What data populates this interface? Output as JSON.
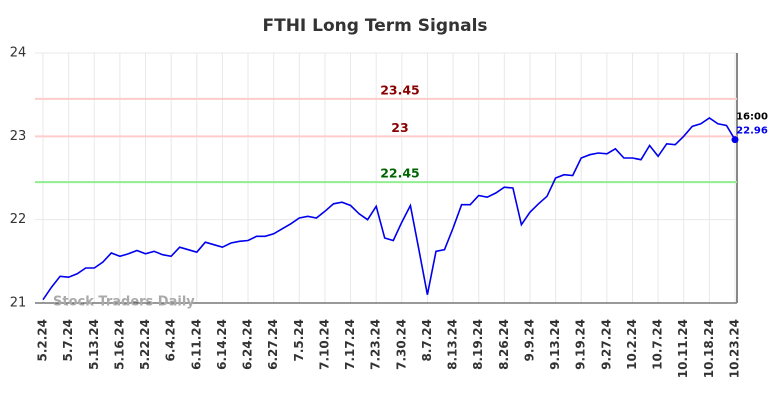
{
  "chart_data": {
    "type": "line",
    "title": "FTHI Long Term Signals",
    "watermark": "Stock Traders Daily",
    "categories": [
      "5.2.24",
      null,
      null,
      "5.7.24",
      null,
      null,
      "5.13.24",
      null,
      null,
      "5.16.24",
      null,
      null,
      "5.22.24",
      null,
      null,
      "6.4.24",
      null,
      null,
      "6.11.24",
      null,
      null,
      "6.14.24",
      null,
      null,
      "6.24.24",
      null,
      null,
      "6.27.24",
      null,
      null,
      "7.5.24",
      null,
      null,
      "7.10.24",
      null,
      null,
      "7.17.24",
      null,
      null,
      "7.23.24",
      null,
      null,
      "7.30.24",
      null,
      null,
      "8.7.24",
      null,
      null,
      "8.13.24",
      null,
      null,
      "8.19.24",
      null,
      null,
      "8.26.24",
      null,
      null,
      "9.9.24",
      null,
      null,
      "9.13.24",
      null,
      null,
      "9.19.24",
      null,
      null,
      "9.27.24",
      null,
      null,
      "10.2.24",
      null,
      null,
      "10.7.24",
      null,
      null,
      "10.11.24",
      null,
      null,
      "10.18.24",
      null,
      null,
      "10.23.24"
    ],
    "series": [
      {
        "color": "#0000ee",
        "values": [
          21.04,
          21.19,
          21.32,
          21.31,
          21.35,
          21.42,
          21.42,
          21.49,
          21.6,
          21.56,
          21.59,
          21.63,
          21.59,
          21.62,
          21.58,
          21.56,
          21.67,
          21.64,
          21.61,
          21.73,
          21.7,
          21.67,
          21.72,
          21.74,
          21.75,
          21.8,
          21.8,
          21.83,
          21.89,
          21.95,
          22.02,
          22.04,
          22.02,
          22.1,
          22.19,
          22.21,
          22.17,
          22.07,
          22.0,
          22.16,
          21.78,
          21.75,
          21.97,
          22.17,
          21.64,
          21.1,
          21.62,
          21.64,
          21.9,
          22.18,
          22.18,
          22.29,
          22.27,
          22.32,
          22.39,
          22.38,
          21.94,
          22.09,
          22.19,
          22.28,
          22.5,
          22.54,
          22.53,
          22.74,
          22.78,
          22.8,
          22.79,
          22.85,
          22.74,
          22.74,
          22.72,
          22.89,
          22.76,
          22.91,
          22.9,
          23.0,
          23.12,
          23.15,
          23.22,
          23.15,
          23.13,
          22.96
        ]
      }
    ],
    "last_point_annotation": "16:00",
    "reference_lines": [
      {
        "value": 23.45,
        "color": "#ffcccc",
        "label_color": "#8b0000"
      },
      {
        "value": 23,
        "color": "#ffcccc",
        "label_color": "#8b0000"
      },
      {
        "value": 22.45,
        "color": "#90ee90",
        "label_color": "#006400"
      }
    ],
    "ylim": [
      21,
      24
    ],
    "yticks": [
      21,
      22,
      23,
      24
    ],
    "grid": true
  }
}
